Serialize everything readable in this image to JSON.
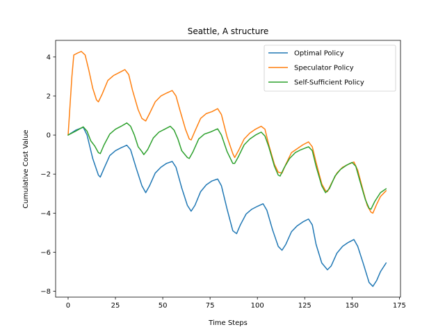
{
  "chart_data": {
    "type": "line",
    "title": "Seattle, A structure",
    "xlabel": "Time Steps",
    "ylabel": "Cumulative Cost Value",
    "xlim": [
      -6.6,
      175.6
    ],
    "ylim": [
      -8.3,
      4.85
    ],
    "xticks": [
      0,
      25,
      50,
      75,
      100,
      125,
      150,
      175
    ],
    "yticks": [
      -8,
      -6,
      -4,
      -2,
      0,
      2,
      4
    ],
    "legend_position": "top-right",
    "grid": false,
    "series": [
      {
        "name": "Optimal Policy",
        "color": "#1f77b4",
        "points": [
          [
            0,
            0
          ],
          [
            4,
            0.25
          ],
          [
            8,
            0.4
          ],
          [
            10,
            0
          ],
          [
            13,
            -1.2
          ],
          [
            16,
            -2.05
          ],
          [
            17,
            -2.15
          ],
          [
            19,
            -1.7
          ],
          [
            22,
            -1.05
          ],
          [
            25,
            -0.8
          ],
          [
            28,
            -0.65
          ],
          [
            31,
            -0.52
          ],
          [
            33,
            -0.75
          ],
          [
            36,
            -1.7
          ],
          [
            39,
            -2.6
          ],
          [
            41,
            -2.95
          ],
          [
            43,
            -2.6
          ],
          [
            46,
            -1.95
          ],
          [
            49,
            -1.65
          ],
          [
            52,
            -1.45
          ],
          [
            55,
            -1.35
          ],
          [
            57,
            -1.65
          ],
          [
            60,
            -2.7
          ],
          [
            63,
            -3.6
          ],
          [
            65,
            -3.9
          ],
          [
            67,
            -3.6
          ],
          [
            70,
            -2.9
          ],
          [
            73,
            -2.55
          ],
          [
            76,
            -2.35
          ],
          [
            79,
            -2.25
          ],
          [
            81,
            -2.6
          ],
          [
            84,
            -3.8
          ],
          [
            87,
            -4.9
          ],
          [
            89,
            -5.05
          ],
          [
            91,
            -4.6
          ],
          [
            94,
            -4.05
          ],
          [
            97,
            -3.8
          ],
          [
            100,
            -3.65
          ],
          [
            103,
            -3.52
          ],
          [
            105,
            -3.85
          ],
          [
            108,
            -4.85
          ],
          [
            111,
            -5.7
          ],
          [
            113,
            -5.9
          ],
          [
            115,
            -5.6
          ],
          [
            118,
            -4.95
          ],
          [
            121,
            -4.65
          ],
          [
            124,
            -4.45
          ],
          [
            127,
            -4.3
          ],
          [
            129,
            -4.6
          ],
          [
            131,
            -5.6
          ],
          [
            134,
            -6.55
          ],
          [
            137,
            -6.9
          ],
          [
            139,
            -6.7
          ],
          [
            142,
            -6.05
          ],
          [
            145,
            -5.7
          ],
          [
            148,
            -5.5
          ],
          [
            151,
            -5.35
          ],
          [
            153,
            -5.7
          ],
          [
            156,
            -6.6
          ],
          [
            159,
            -7.55
          ],
          [
            161,
            -7.75
          ],
          [
            163,
            -7.45
          ],
          [
            165,
            -7.0
          ],
          [
            168,
            -6.55
          ]
        ]
      },
      {
        "name": "Speculator Policy",
        "color": "#ff7f0e",
        "points": [
          [
            0,
            0
          ],
          [
            1,
            1.5
          ],
          [
            2,
            3.0
          ],
          [
            3,
            4.1
          ],
          [
            5,
            4.2
          ],
          [
            7,
            4.28
          ],
          [
            9,
            4.1
          ],
          [
            11,
            3.3
          ],
          [
            13,
            2.4
          ],
          [
            15,
            1.8
          ],
          [
            16,
            1.7
          ],
          [
            18,
            2.1
          ],
          [
            21,
            2.8
          ],
          [
            24,
            3.05
          ],
          [
            27,
            3.2
          ],
          [
            30,
            3.35
          ],
          [
            32,
            3.1
          ],
          [
            34,
            2.3
          ],
          [
            37,
            1.3
          ],
          [
            39,
            0.85
          ],
          [
            41,
            0.72
          ],
          [
            43,
            1.1
          ],
          [
            46,
            1.7
          ],
          [
            49,
            2.0
          ],
          [
            52,
            2.15
          ],
          [
            55,
            2.28
          ],
          [
            57,
            2.0
          ],
          [
            59,
            1.3
          ],
          [
            62,
            0.3
          ],
          [
            64,
            -0.2
          ],
          [
            65,
            -0.25
          ],
          [
            67,
            0.2
          ],
          [
            70,
            0.85
          ],
          [
            73,
            1.1
          ],
          [
            76,
            1.2
          ],
          [
            79,
            1.35
          ],
          [
            81,
            1.05
          ],
          [
            84,
            -0.1
          ],
          [
            87,
            -0.95
          ],
          [
            88,
            -1.15
          ],
          [
            90,
            -0.8
          ],
          [
            93,
            -0.2
          ],
          [
            96,
            0.1
          ],
          [
            99,
            0.3
          ],
          [
            102,
            0.45
          ],
          [
            104,
            0.3
          ],
          [
            106,
            -0.5
          ],
          [
            109,
            -1.5
          ],
          [
            111,
            -1.9
          ],
          [
            113,
            -1.95
          ],
          [
            115,
            -1.5
          ],
          [
            118,
            -0.9
          ],
          [
            121,
            -0.7
          ],
          [
            124,
            -0.5
          ],
          [
            127,
            -0.35
          ],
          [
            129,
            -0.6
          ],
          [
            131,
            -1.4
          ],
          [
            134,
            -2.5
          ],
          [
            136,
            -2.85
          ],
          [
            137,
            -2.9
          ],
          [
            139,
            -2.5
          ],
          [
            142,
            -1.95
          ],
          [
            145,
            -1.65
          ],
          [
            148,
            -1.5
          ],
          [
            151,
            -1.38
          ],
          [
            153,
            -1.8
          ],
          [
            156,
            -2.9
          ],
          [
            158,
            -3.6
          ],
          [
            160,
            -3.95
          ],
          [
            161,
            -4.0
          ],
          [
            163,
            -3.55
          ],
          [
            165,
            -3.15
          ],
          [
            168,
            -2.85
          ]
        ]
      },
      {
        "name": "Self-Sufficient Policy",
        "color": "#2ca02c",
        "points": [
          [
            0,
            0
          ],
          [
            4,
            0.2
          ],
          [
            8,
            0.42
          ],
          [
            10,
            0.2
          ],
          [
            12,
            -0.3
          ],
          [
            14,
            -0.55
          ],
          [
            16,
            -0.9
          ],
          [
            17,
            -0.95
          ],
          [
            19,
            -0.5
          ],
          [
            22,
            0.05
          ],
          [
            25,
            0.3
          ],
          [
            28,
            0.45
          ],
          [
            31,
            0.62
          ],
          [
            33,
            0.45
          ],
          [
            35,
            0.0
          ],
          [
            37,
            -0.6
          ],
          [
            39,
            -0.85
          ],
          [
            40,
            -1.0
          ],
          [
            42,
            -0.75
          ],
          [
            45,
            -0.15
          ],
          [
            48,
            0.15
          ],
          [
            51,
            0.3
          ],
          [
            54,
            0.45
          ],
          [
            56,
            0.25
          ],
          [
            58,
            -0.2
          ],
          [
            60,
            -0.8
          ],
          [
            63,
            -1.15
          ],
          [
            64,
            -1.2
          ],
          [
            66,
            -0.85
          ],
          [
            69,
            -0.2
          ],
          [
            72,
            0.05
          ],
          [
            75,
            0.15
          ],
          [
            79,
            0.32
          ],
          [
            81,
            0.0
          ],
          [
            84,
            -0.85
          ],
          [
            87,
            -1.45
          ],
          [
            88,
            -1.45
          ],
          [
            90,
            -1.1
          ],
          [
            93,
            -0.5
          ],
          [
            96,
            -0.2
          ],
          [
            99,
            0.0
          ],
          [
            102,
            0.15
          ],
          [
            104,
            -0.05
          ],
          [
            106,
            -0.6
          ],
          [
            109,
            -1.6
          ],
          [
            111,
            -2.05
          ],
          [
            112,
            -2.1
          ],
          [
            114,
            -1.7
          ],
          [
            117,
            -1.2
          ],
          [
            120,
            -0.9
          ],
          [
            123,
            -0.75
          ],
          [
            127,
            -0.6
          ],
          [
            129,
            -0.8
          ],
          [
            131,
            -1.6
          ],
          [
            134,
            -2.6
          ],
          [
            136,
            -2.95
          ],
          [
            138,
            -2.75
          ],
          [
            141,
            -2.1
          ],
          [
            144,
            -1.75
          ],
          [
            147,
            -1.55
          ],
          [
            150,
            -1.4
          ],
          [
            152,
            -1.6
          ],
          [
            154,
            -2.3
          ],
          [
            157,
            -3.3
          ],
          [
            159,
            -3.75
          ],
          [
            160,
            -3.8
          ],
          [
            162,
            -3.4
          ],
          [
            165,
            -2.95
          ],
          [
            168,
            -2.75
          ]
        ]
      }
    ]
  }
}
